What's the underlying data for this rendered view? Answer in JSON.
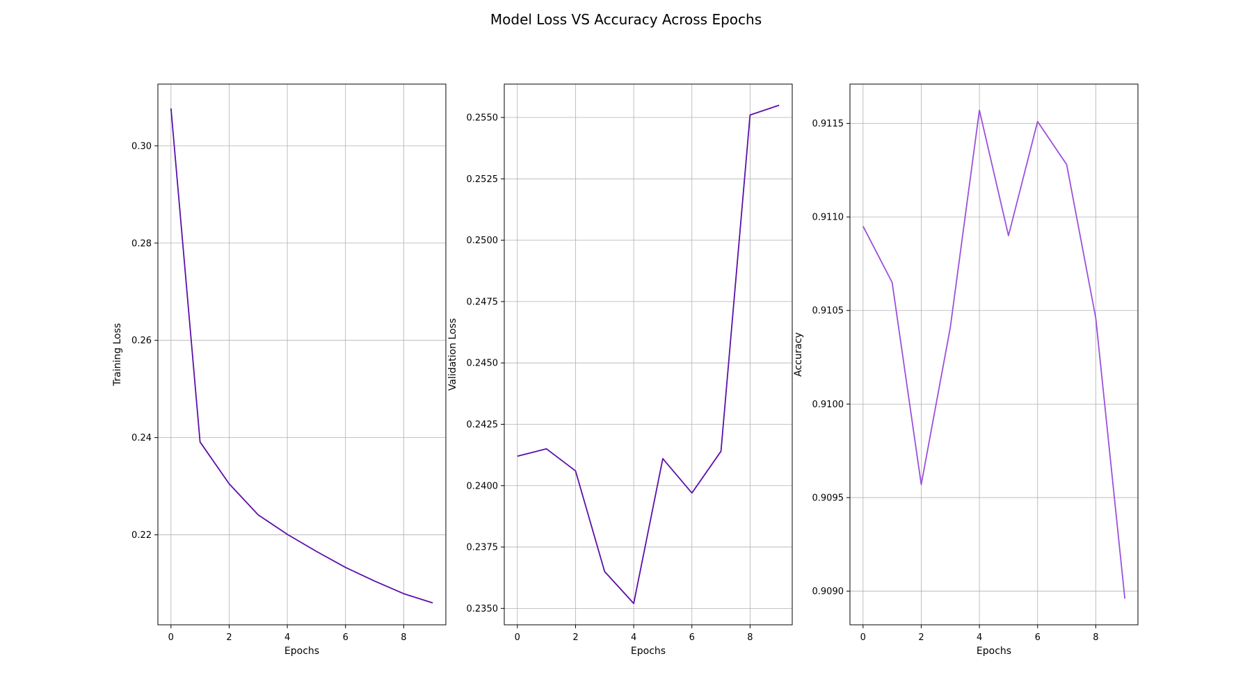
{
  "title": "Model Loss VS Accuracy Across Epochs",
  "chart_data": [
    {
      "type": "line",
      "xlabel": "Epochs",
      "ylabel": "Training Loss",
      "x": [
        0,
        1,
        2,
        3,
        4,
        5,
        6,
        7,
        8,
        9
      ],
      "xticks": [
        0,
        2,
        4,
        6,
        8
      ],
      "xlim": [
        -0.45,
        9.45
      ],
      "yticks": [
        0.22,
        0.24,
        0.26,
        0.28,
        0.3
      ],
      "ytick_labels": [
        "0.22",
        "0.24",
        "0.26",
        "0.28",
        "0.30"
      ],
      "ylim": [
        0.2015,
        0.3127
      ],
      "grid": true,
      "series": [
        {
          "color": "#5b0fa8",
          "values": [
            0.3077,
            0.2391,
            0.2305,
            0.2241,
            0.2201,
            0.2166,
            0.2133,
            0.2105,
            0.2079,
            0.206
          ]
        }
      ]
    },
    {
      "type": "line",
      "xlabel": "Epochs",
      "ylabel": "Validation Loss",
      "x": [
        0,
        1,
        2,
        3,
        4,
        5,
        6,
        7,
        8,
        9
      ],
      "xticks": [
        0,
        2,
        4,
        6,
        8
      ],
      "xlim": [
        -0.45,
        9.45
      ],
      "yticks": [
        0.235,
        0.2375,
        0.24,
        0.2425,
        0.245,
        0.2475,
        0.25,
        0.2525,
        0.255
      ],
      "ytick_labels": [
        "0.2350",
        "0.2375",
        "0.2400",
        "0.2425",
        "0.2450",
        "0.2475",
        "0.2500",
        "0.2525",
        "0.2550"
      ],
      "ylim": [
        0.23433,
        0.25636
      ],
      "grid": true,
      "series": [
        {
          "color": "#5b0fa8",
          "values": [
            0.2412,
            0.2415,
            0.2406,
            0.2365,
            0.2352,
            0.2411,
            0.2397,
            0.2414,
            0.2551,
            0.2555
          ]
        }
      ]
    },
    {
      "type": "line",
      "xlabel": "Epochs",
      "ylabel": "Accuracy",
      "x": [
        0,
        1,
        2,
        3,
        4,
        5,
        6,
        7,
        8,
        9
      ],
      "xticks": [
        0,
        2,
        4,
        6,
        8
      ],
      "xlim": [
        -0.45,
        9.45
      ],
      "yticks": [
        0.909,
        0.9095,
        0.91,
        0.9105,
        0.911,
        0.9115
      ],
      "ytick_labels": [
        "0.9090",
        "0.9095",
        "0.9100",
        "0.9105",
        "0.9110",
        "0.9115"
      ],
      "ylim": [
        0.90882,
        0.91171
      ],
      "grid": true,
      "series": [
        {
          "color": "#9b4fdb",
          "values": [
            0.91095,
            0.91065,
            0.90957,
            0.91041,
            0.91157,
            0.9109,
            0.91151,
            0.91128,
            0.91046,
            0.90896
          ]
        }
      ]
    }
  ]
}
